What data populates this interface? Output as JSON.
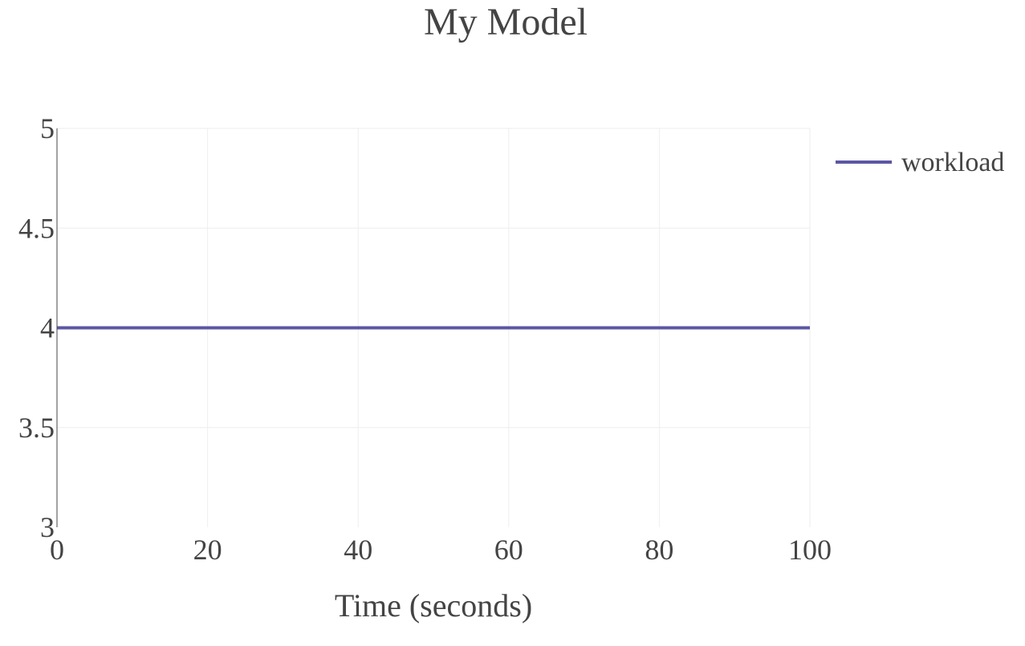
{
  "chart_data": {
    "type": "line",
    "title": "My Model",
    "xlabel": "Time (seconds)",
    "ylabel": "",
    "xlim": [
      0,
      100
    ],
    "ylim": [
      3,
      5
    ],
    "x_ticks": [
      0,
      20,
      40,
      60,
      80,
      100
    ],
    "y_ticks": [
      3,
      3.5,
      4,
      4.5,
      5
    ],
    "x_tick_labels": [
      "0",
      "20",
      "40",
      "60",
      "80",
      "100"
    ],
    "y_tick_labels": [
      "3",
      "3.5",
      "4",
      "4.5",
      "5"
    ],
    "grid": true,
    "legend_position": "top-right",
    "series": [
      {
        "name": "workload",
        "color": "#5b57a3",
        "x": [
          0,
          100
        ],
        "y": [
          4,
          4
        ]
      }
    ]
  }
}
